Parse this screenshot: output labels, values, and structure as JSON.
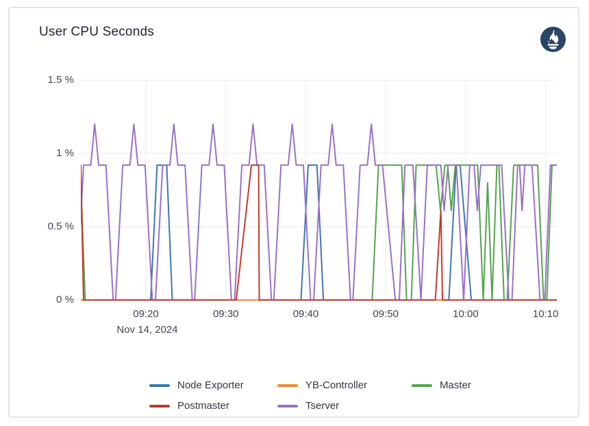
{
  "card": {
    "title": "User CPU Seconds"
  },
  "branding": {
    "logo": "prometheus-icon",
    "logo_color": "#2b4566"
  },
  "chart_data": {
    "type": "line",
    "title": "User CPU Seconds",
    "grid": true,
    "legend_position": "bottom",
    "x_axis": {
      "unit": "time of day",
      "date_label": "Nov 14, 2024",
      "domain_minutes_since_0900": [
        11.86,
        71.4
      ],
      "ticks": [
        {
          "m": 20,
          "label": "09:20"
        },
        {
          "m": 30,
          "label": "09:30"
        },
        {
          "m": 40,
          "label": "09:40"
        },
        {
          "m": 50,
          "label": "09:50"
        },
        {
          "m": 60,
          "label": "10:00"
        },
        {
          "m": 70,
          "label": "10:10"
        }
      ]
    },
    "y_axis": {
      "unit": "%",
      "range": [
        0,
        1.5
      ],
      "ticks": [
        {
          "v": 0,
          "label": "0 %"
        },
        {
          "v": 0.5,
          "label": "0.5 %"
        },
        {
          "v": 1,
          "label": "1 %"
        },
        {
          "v": 1.5,
          "label": "1.5 %"
        }
      ]
    },
    "legend_order": [
      "Node Exporter",
      "YB-Controller",
      "Master",
      "Postmaster",
      "Tserver"
    ],
    "draw_order": [
      "Node Exporter",
      "Master",
      "Tserver",
      "YB-Controller",
      "Postmaster"
    ],
    "series": [
      {
        "name": "Node Exporter",
        "color": "#3d76b0",
        "points": [
          [
            11.86,
            0
          ],
          [
            20.6,
            0
          ],
          [
            21.4,
            0.92
          ],
          [
            22.6,
            0.92
          ],
          [
            23.3,
            0
          ],
          [
            39.4,
            0
          ],
          [
            40.3,
            0.92
          ],
          [
            41.4,
            0.92
          ],
          [
            42.2,
            0
          ],
          [
            57.9,
            0
          ],
          [
            58.8,
            0.92
          ],
          [
            59.3,
            0.92
          ],
          [
            60.7,
            0
          ],
          [
            71.5,
            0
          ]
        ]
      },
      {
        "name": "YB-Controller",
        "color": "#ef8733",
        "points": [
          [
            11.86,
            0
          ],
          [
            71.5,
            0
          ]
        ]
      },
      {
        "name": "Master",
        "color": "#55a24e",
        "points": [
          [
            11.86,
            0.8
          ],
          [
            12.4,
            0
          ],
          [
            48.3,
            0
          ],
          [
            49.1,
            0.92
          ],
          [
            52.0,
            0.92
          ],
          [
            52.6,
            0
          ],
          [
            53.2,
            0
          ],
          [
            53.8,
            0.92
          ],
          [
            56.3,
            0.92
          ],
          [
            56.85,
            0.61
          ],
          [
            57.4,
            0.92
          ],
          [
            57.75,
            0.92
          ],
          [
            58.2,
            0.61
          ],
          [
            58.7,
            0.92
          ],
          [
            61.5,
            0.92
          ],
          [
            62.2,
            0
          ],
          [
            62.75,
            0.8
          ],
          [
            63.3,
            0
          ],
          [
            63.9,
            0.92
          ],
          [
            64.15,
            0.92
          ],
          [
            64.8,
            0
          ],
          [
            65.2,
            0
          ],
          [
            66.0,
            0.92
          ],
          [
            69.0,
            0.92
          ],
          [
            69.75,
            0
          ],
          [
            70.15,
            0
          ],
          [
            70.8,
            0.92
          ],
          [
            71.5,
            0.92
          ]
        ]
      },
      {
        "name": "Postmaster",
        "color": "#c23b2b",
        "points": [
          [
            11.86,
            0.92
          ],
          [
            12.2,
            0
          ],
          [
            31.3,
            0
          ],
          [
            33.2,
            0.92
          ],
          [
            34.1,
            0.92
          ],
          [
            34.18,
            0
          ],
          [
            56.2,
            0
          ],
          [
            56.9,
            0.61
          ],
          [
            57.1,
            0
          ],
          [
            71.5,
            0
          ]
        ]
      },
      {
        "name": "Tserver",
        "color": "#9a70c6",
        "points": [
          [
            11.3,
            0
          ],
          [
            12.2,
            0.92
          ],
          [
            13.1,
            0.92
          ],
          [
            13.6,
            1.2
          ],
          [
            14.1,
            0.92
          ],
          [
            15.0,
            0.92
          ],
          [
            15.9,
            0
          ],
          [
            16.2,
            0
          ],
          [
            17.1,
            0.92
          ],
          [
            18.0,
            0.92
          ],
          [
            18.5,
            1.2
          ],
          [
            19.0,
            0.92
          ],
          [
            19.9,
            0.92
          ],
          [
            20.8,
            0
          ],
          [
            21.2,
            0
          ],
          [
            22.1,
            0.92
          ],
          [
            23.0,
            0.92
          ],
          [
            23.5,
            1.2
          ],
          [
            24.0,
            0.92
          ],
          [
            24.9,
            0.92
          ],
          [
            25.8,
            0
          ],
          [
            26.1,
            0
          ],
          [
            27.0,
            0.92
          ],
          [
            27.9,
            0.92
          ],
          [
            28.4,
            1.2
          ],
          [
            28.9,
            0.92
          ],
          [
            29.8,
            0.92
          ],
          [
            30.7,
            0
          ],
          [
            31.1,
            0
          ],
          [
            32.0,
            0.92
          ],
          [
            32.9,
            0.92
          ],
          [
            33.4,
            1.2
          ],
          [
            33.9,
            0.92
          ],
          [
            34.8,
            0.92
          ],
          [
            35.7,
            0
          ],
          [
            36.0,
            0
          ],
          [
            36.9,
            0.92
          ],
          [
            37.8,
            0.92
          ],
          [
            38.3,
            1.2
          ],
          [
            38.8,
            0.92
          ],
          [
            39.7,
            0.92
          ],
          [
            40.6,
            0
          ],
          [
            41.0,
            0
          ],
          [
            41.9,
            0.92
          ],
          [
            42.8,
            0.92
          ],
          [
            43.3,
            1.2
          ],
          [
            43.8,
            0.92
          ],
          [
            44.7,
            0.92
          ],
          [
            45.6,
            0
          ],
          [
            45.9,
            0
          ],
          [
            46.8,
            0.92
          ],
          [
            47.7,
            0.92
          ],
          [
            48.2,
            1.2
          ],
          [
            48.7,
            0.92
          ],
          [
            49.6,
            0.92
          ],
          [
            51.2,
            0
          ],
          [
            51.7,
            0
          ],
          [
            52.4,
            0.92
          ],
          [
            53.4,
            0.92
          ],
          [
            54.4,
            0
          ],
          [
            55.2,
            0.92
          ],
          [
            56.9,
            0.92
          ],
          [
            57.3,
            0.61
          ],
          [
            57.8,
            0.92
          ],
          [
            58.85,
            0.92
          ],
          [
            59.75,
            0
          ],
          [
            60.5,
            0.92
          ],
          [
            61.05,
            0.92
          ],
          [
            61.45,
            0.61
          ],
          [
            61.9,
            0.92
          ],
          [
            64.5,
            0.92
          ],
          [
            65.4,
            0
          ],
          [
            65.8,
            0
          ],
          [
            66.5,
            0.92
          ],
          [
            66.75,
            0.92
          ],
          [
            67.05,
            0.61
          ],
          [
            67.4,
            0.92
          ],
          [
            68.3,
            0.92
          ],
          [
            69.3,
            0
          ],
          [
            69.9,
            0
          ],
          [
            70.6,
            0.92
          ],
          [
            71.5,
            0.92
          ]
        ]
      }
    ]
  }
}
